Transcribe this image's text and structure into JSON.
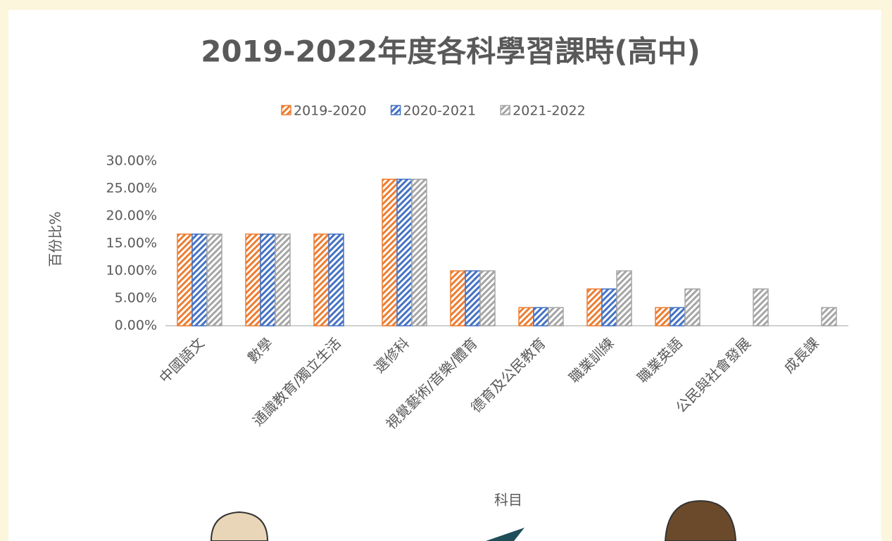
{
  "chart_data": {
    "type": "bar",
    "title": "2019-2022年度各科學習課時(高中)",
    "x_label": "科目",
    "y_label": "百份比%",
    "categories": [
      "中國語文",
      "數學",
      "通識教育/獨立生活",
      "選修科",
      "視覺藝術/音樂/體育",
      "德育及公民教育",
      "職業訓練",
      "職業英語",
      "公民與社會發展",
      "成長課"
    ],
    "series": [
      {
        "name": "2019-2020",
        "color": "#ed7d31",
        "values": [
          16.7,
          16.7,
          16.7,
          26.7,
          10,
          3.3,
          6.7,
          3.3,
          0,
          0
        ]
      },
      {
        "name": "2020-2021",
        "color": "#4472c4",
        "values": [
          16.7,
          16.7,
          16.7,
          26.7,
          10,
          3.3,
          6.7,
          3.3,
          0,
          0
        ]
      },
      {
        "name": "2021-2022",
        "color": "#a5a5a5",
        "values": [
          16.7,
          16.7,
          0,
          26.7,
          10,
          3.3,
          10,
          6.7,
          6.7,
          3.3
        ]
      }
    ],
    "ylim": [
      0,
      30
    ],
    "yticks": [
      {
        "value": 0,
        "label": "0.00%"
      },
      {
        "value": 5,
        "label": "5.00%"
      },
      {
        "value": 10,
        "label": "10.00%"
      },
      {
        "value": 15,
        "label": "15.00%"
      },
      {
        "value": 20,
        "label": "20.00%"
      },
      {
        "value": 25,
        "label": "25.00%"
      },
      {
        "value": 30,
        "label": "30.00%"
      }
    ],
    "legend": "top"
  }
}
